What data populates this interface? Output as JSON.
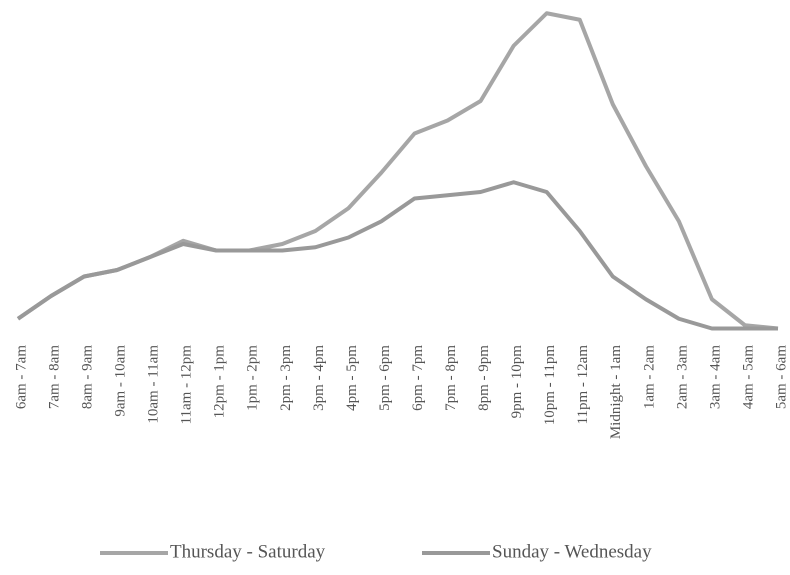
{
  "chart_data": {
    "type": "line",
    "categories": [
      "6am - 7am",
      "7am - 8am",
      "8am - 9am",
      "9am - 10am",
      "10am - 11am",
      "11am - 12pm",
      "12pm - 1pm",
      "1pm - 2pm",
      "2pm - 3pm",
      "3pm - 4pm",
      "4pm - 5pm",
      "5pm - 6pm",
      "6pm - 7pm",
      "7pm - 8pm",
      "8pm - 9pm",
      "9pm - 10pm",
      "10pm - 11pm",
      "11pm - 12am",
      "Midnight - 1am",
      "1am - 2am",
      "2am - 3am",
      "3am - 4am",
      "4am - 5am",
      "5am - 6am"
    ],
    "series": [
      {
        "name": "Thursday - Saturday",
        "color": "#a6a6a6",
        "values": [
          5,
          12,
          18,
          20,
          24,
          29,
          26,
          26,
          28,
          32,
          39,
          50,
          62,
          66,
          72,
          89,
          99,
          97,
          71,
          52,
          35,
          11,
          3,
          2
        ]
      },
      {
        "name": "Sunday - Wednesday",
        "color": "#999999",
        "values": [
          5,
          12,
          18,
          20,
          24,
          28,
          26,
          26,
          26,
          27,
          30,
          35,
          42,
          43,
          44,
          47,
          44,
          32,
          18,
          11,
          5,
          2,
          2,
          2
        ]
      }
    ],
    "ylim": [
      0,
      100
    ]
  }
}
